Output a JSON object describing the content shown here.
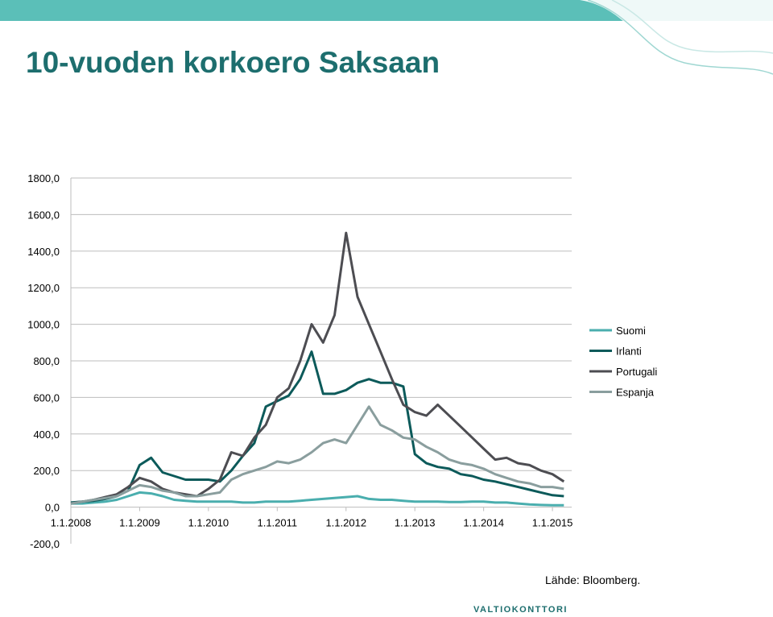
{
  "chart_data": {
    "type": "line",
    "title": "10-vuoden korkoero Saksaan",
    "source": "Lähde: Bloomberg.",
    "logo": "VALTIOKONTTORI",
    "x": [
      2008.0,
      2008.167,
      2008.333,
      2008.5,
      2008.667,
      2008.833,
      2009.0,
      2009.167,
      2009.333,
      2009.5,
      2009.667,
      2009.833,
      2010.0,
      2010.167,
      2010.333,
      2010.5,
      2010.667,
      2010.833,
      2011.0,
      2011.167,
      2011.333,
      2011.5,
      2011.667,
      2011.833,
      2012.0,
      2012.167,
      2012.333,
      2012.5,
      2012.667,
      2012.833,
      2013.0,
      2013.167,
      2013.333,
      2013.5,
      2013.667,
      2013.833,
      2014.0,
      2014.167,
      2014.333,
      2014.5,
      2014.667,
      2014.833,
      2015.0,
      2015.167
    ],
    "xlim": [
      2008.0,
      2015.28
    ],
    "xticks": [
      {
        "value": 2008,
        "label": "1.1.2008"
      },
      {
        "value": 2009,
        "label": "1.1.2009"
      },
      {
        "value": 2010,
        "label": "1.1.2010"
      },
      {
        "value": 2011,
        "label": "1.1.2011"
      },
      {
        "value": 2012,
        "label": "1.1.2012"
      },
      {
        "value": 2013,
        "label": "1.1.2013"
      },
      {
        "value": 2014,
        "label": "1.1.2014"
      },
      {
        "value": 2015,
        "label": "1.1.2015"
      }
    ],
    "ylim": [
      -200,
      1800
    ],
    "yticks": [
      {
        "value": -200,
        "label": "-200,0"
      },
      {
        "value": 0,
        "label": "0,0"
      },
      {
        "value": 200,
        "label": "200,0"
      },
      {
        "value": 400,
        "label": "400,0"
      },
      {
        "value": 600,
        "label": "600,0"
      },
      {
        "value": 800,
        "label": "800,0"
      },
      {
        "value": 1000,
        "label": "1000,0"
      },
      {
        "value": 1200,
        "label": "1200,0"
      },
      {
        "value": 1400,
        "label": "1400,0"
      },
      {
        "value": 1600,
        "label": "1600,0"
      },
      {
        "value": 1800,
        "label": "1800,0"
      }
    ],
    "grid": true,
    "legend": "right",
    "series": [
      {
        "name": "Suomi",
        "color": "#4aaeae",
        "values": [
          20,
          20,
          25,
          30,
          40,
          60,
          80,
          75,
          60,
          40,
          35,
          30,
          30,
          30,
          30,
          25,
          25,
          30,
          30,
          30,
          35,
          40,
          45,
          50,
          55,
          60,
          45,
          40,
          40,
          35,
          30,
          30,
          30,
          28,
          28,
          30,
          30,
          25,
          25,
          20,
          15,
          12,
          10,
          10
        ]
      },
      {
        "name": "Irlanti",
        "color": "#0c5a5a",
        "values": [
          25,
          30,
          35,
          45,
          60,
          90,
          230,
          270,
          190,
          170,
          150,
          150,
          150,
          140,
          200,
          280,
          350,
          550,
          580,
          610,
          700,
          850,
          620,
          620,
          640,
          680,
          700,
          680,
          680,
          660,
          290,
          240,
          220,
          210,
          180,
          170,
          150,
          140,
          125,
          110,
          95,
          80,
          65,
          60
        ]
      },
      {
        "name": "Portugali",
        "color": "#4d4d52",
        "values": [
          20,
          30,
          40,
          55,
          70,
          110,
          160,
          140,
          100,
          80,
          70,
          60,
          100,
          150,
          300,
          280,
          380,
          450,
          600,
          650,
          800,
          1000,
          900,
          1050,
          1500,
          1150,
          1000,
          850,
          700,
          560,
          520,
          500,
          560,
          500,
          440,
          380,
          320,
          260,
          270,
          240,
          230,
          200,
          180,
          140
        ]
      },
      {
        "name": "Espanja",
        "color": "#8a9e9e",
        "values": [
          20,
          30,
          40,
          50,
          60,
          90,
          120,
          110,
          90,
          80,
          60,
          60,
          70,
          80,
          150,
          180,
          200,
          220,
          250,
          240,
          260,
          300,
          350,
          370,
          350,
          450,
          550,
          450,
          420,
          380,
          370,
          330,
          300,
          260,
          240,
          230,
          210,
          180,
          160,
          140,
          130,
          110,
          110,
          100
        ]
      }
    ]
  }
}
